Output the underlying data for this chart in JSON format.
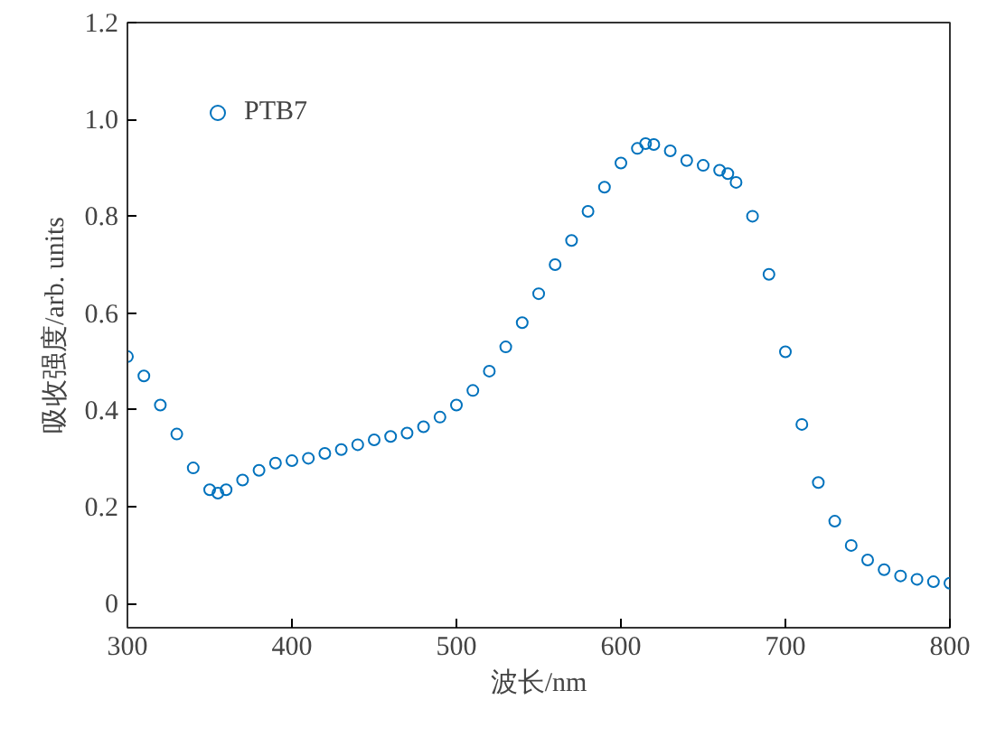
{
  "chart_data": {
    "type": "scatter",
    "xlabel": "波长/nm",
    "ylabel": "吸收强度/arb. units",
    "x": [
      300,
      310,
      320,
      330,
      340,
      350,
      355,
      360,
      370,
      380,
      390,
      400,
      410,
      420,
      430,
      440,
      450,
      460,
      470,
      480,
      490,
      500,
      510,
      520,
      530,
      540,
      550,
      560,
      570,
      580,
      590,
      600,
      610,
      615,
      620,
      630,
      640,
      650,
      660,
      665,
      670,
      680,
      690,
      700,
      710,
      720,
      730,
      740,
      750,
      760,
      770,
      780,
      790,
      800
    ],
    "series": [
      {
        "name": "PTB7",
        "color": "#0072bd",
        "values": [
          0.51,
          0.47,
          0.41,
          0.35,
          0.28,
          0.235,
          0.228,
          0.235,
          0.255,
          0.275,
          0.29,
          0.295,
          0.3,
          0.31,
          0.318,
          0.328,
          0.338,
          0.345,
          0.352,
          0.365,
          0.385,
          0.41,
          0.44,
          0.48,
          0.53,
          0.58,
          0.64,
          0.7,
          0.75,
          0.81,
          0.86,
          0.91,
          0.94,
          0.95,
          0.948,
          0.935,
          0.915,
          0.905,
          0.895,
          0.888,
          0.87,
          0.8,
          0.68,
          0.52,
          0.37,
          0.25,
          0.17,
          0.12,
          0.09,
          0.07,
          0.057,
          0.05,
          0.045,
          0.042
        ]
      }
    ],
    "xlim": [
      300,
      800
    ],
    "xticks": [
      300,
      400,
      500,
      600,
      700,
      800
    ],
    "ylim": [
      -0.05,
      1.2
    ],
    "yticks": [
      0,
      0.2,
      0.4,
      0.6,
      0.8,
      {
        "value": 1,
        "label": "1.0"
      },
      1.2
    ],
    "marker": "circle",
    "legend": "top left",
    "grid": false
  }
}
